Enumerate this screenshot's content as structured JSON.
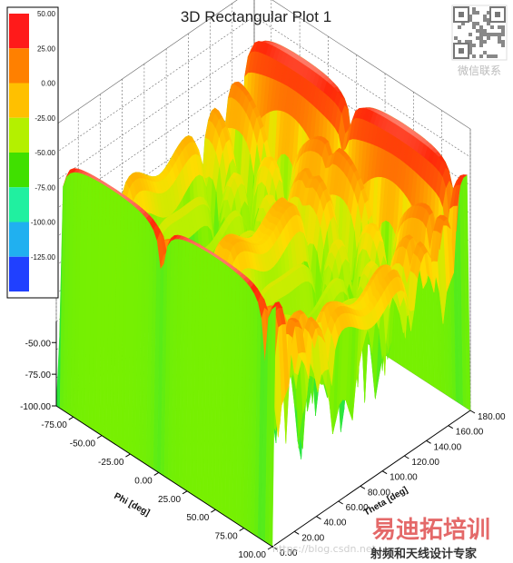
{
  "chart_data": {
    "type": "surface3d",
    "title": "3D Rectangular Plot 1",
    "x_axis": {
      "label": "Theta [deg]",
      "ticks": [
        "0.00",
        "20.00",
        "40.00",
        "60.00",
        "80.00",
        "100.00",
        "120.00",
        "140.00",
        "160.00",
        "180.00"
      ],
      "range": [
        0,
        180
      ]
    },
    "y_axis": {
      "label": "Phi [deg]",
      "ticks": [
        "-75.00",
        "-50.00",
        "-25.00",
        "0.00",
        "25.00",
        "50.00",
        "75.00",
        "100.00"
      ],
      "range": [
        -90,
        100
      ]
    },
    "z_axis": {
      "label": "",
      "ticks": [
        "-100.00",
        "-75.00",
        "-50.00"
      ],
      "range": [
        -100,
        -40
      ]
    },
    "legend": {
      "placement": "top-left",
      "levels": [
        "50.00",
        "25.00",
        "0.00",
        "-25.00",
        "-50.00",
        "-75.00",
        "-100.00",
        "-125.00"
      ],
      "colors": [
        "#ff1a1a",
        "#ff8000",
        "#ffc000",
        "#b4f000",
        "#40e000",
        "#20f0a0",
        "#20b0f0",
        "#2040ff"
      ]
    },
    "peak_value": 50.0,
    "floor_value": -125.0
  },
  "watermarks": {
    "wechat_text": "微信联系",
    "brand_text": "易迪拓培训",
    "brand_sub": "射频和天线设计专家",
    "url_text": "https://blog.csdn.net"
  },
  "colors": {
    "grid": "#555555",
    "axis": "#000000"
  }
}
